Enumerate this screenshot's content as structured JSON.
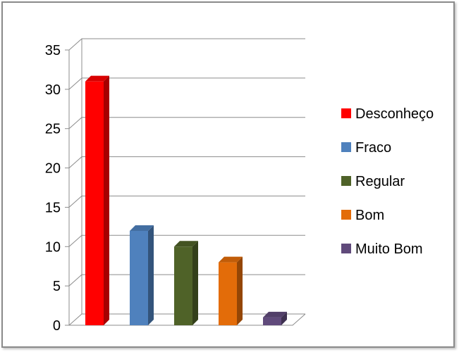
{
  "chart_data": {
    "type": "bar",
    "categories": [
      "Desconheço",
      "Fraco",
      "Regular",
      "Bom",
      "Muito Bom"
    ],
    "values": [
      31,
      12,
      10,
      8,
      1
    ],
    "colors": [
      "#ff0000",
      "#4f81bd",
      "#4f6228",
      "#e36c09",
      "#604a7b"
    ],
    "title": "",
    "xlabel": "",
    "ylabel": "",
    "ylim": [
      0,
      35
    ],
    "yticks": [
      "0",
      "5",
      "10",
      "15",
      "20",
      "25",
      "30",
      "35"
    ],
    "grid": true,
    "legend_position": "right",
    "style": "3d-column"
  }
}
